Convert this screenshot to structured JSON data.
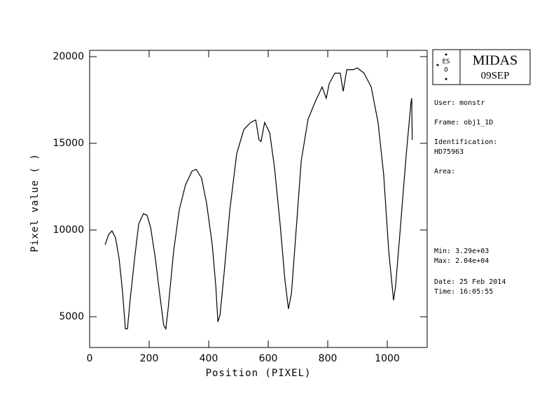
{
  "chart_data": {
    "type": "line",
    "xlabel": "Position (PIXEL)",
    "ylabel": "Pixel value ( )",
    "x": [
      52,
      64,
      75,
      87,
      99,
      111,
      120,
      127,
      136,
      151,
      165,
      181,
      193,
      205,
      221,
      235,
      249,
      256,
      264,
      282,
      301,
      322,
      344,
      358,
      376,
      393,
      412,
      424,
      431,
      438,
      452,
      471,
      494,
      518,
      541,
      558,
      569,
      576,
      588,
      605,
      621,
      640,
      656,
      668,
      678,
      692,
      711,
      734,
      758,
      781,
      795,
      805,
      824,
      842,
      852,
      864,
      887,
      899,
      922,
      946,
      969,
      988,
      1005,
      1021,
      1028,
      1045,
      1064,
      1080,
      1082,
      1084
    ],
    "series": [
      {
        "name": "obj1_1D",
        "color": "#000000",
        "values": [
          9150,
          9750,
          9950,
          9550,
          8350,
          6350,
          4300,
          4300,
          5950,
          8350,
          10350,
          10950,
          10850,
          10150,
          8350,
          6350,
          4500,
          4300,
          5500,
          8750,
          11150,
          12600,
          13400,
          13500,
          13000,
          11550,
          9150,
          6750,
          4700,
          5100,
          7550,
          11150,
          14400,
          15800,
          16200,
          16350,
          15200,
          15100,
          16200,
          15600,
          13600,
          10350,
          7150,
          5450,
          6350,
          9550,
          14000,
          16400,
          17400,
          18250,
          17600,
          18450,
          19050,
          19050,
          18000,
          19250,
          19250,
          19350,
          19050,
          18250,
          16200,
          13200,
          8750,
          5950,
          6750,
          10350,
          14400,
          17400,
          17600,
          15200
        ]
      }
    ],
    "xlim": [
      0,
      1134
    ],
    "ylim": [
      3226,
      20363
    ],
    "xticks": [
      0,
      200,
      400,
      600,
      800,
      1000
    ],
    "yticks": [
      5000,
      10000,
      15000,
      20000
    ],
    "panel": {
      "logo": "MIDAS",
      "version": "09SEP",
      "user": "User: monstr",
      "frame": "Frame: obj1_1D",
      "identification": "Identification:",
      "object": "HD75963",
      "area": "Area:",
      "min": "Min: 3.29e+03",
      "max": "Max: 2.04e+04",
      "date": "Date: 25 Feb 2014",
      "time": "Time: 16:05:55"
    }
  }
}
